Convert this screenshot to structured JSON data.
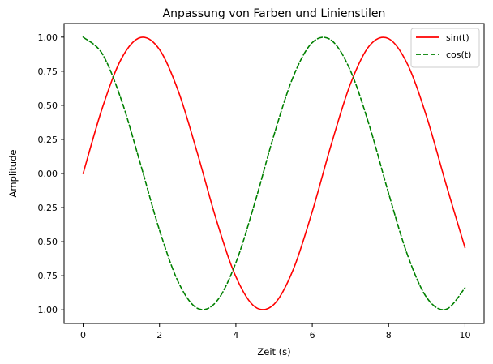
{
  "chart_data": {
    "type": "line",
    "title": "Anpassung von Farben und Linienstilen",
    "xlabel": "Zeit (s)",
    "ylabel": "Amplitude",
    "xlim": [
      -0.5,
      10.5
    ],
    "ylim": [
      -1.1,
      1.1
    ],
    "x_ticks": [
      0,
      2,
      4,
      6,
      8,
      10
    ],
    "x_tick_labels": [
      "0",
      "2",
      "4",
      "6",
      "8",
      "10"
    ],
    "y_ticks": [
      -1.0,
      -0.75,
      -0.5,
      -0.25,
      0.0,
      0.25,
      0.5,
      0.75,
      1.0
    ],
    "y_tick_labels": [
      "−1.00",
      "−0.75",
      "−0.50",
      "−0.25",
      "0.00",
      "0.25",
      "0.50",
      "0.75",
      "1.00"
    ],
    "grid": false,
    "legend_position": "top-right",
    "series": [
      {
        "name": "sin(t)",
        "color": "#ff0000",
        "line_style": "solid",
        "x": [
          0,
          0.5,
          1,
          1.5,
          2,
          2.5,
          3,
          3.5,
          4,
          4.5,
          5,
          5.5,
          6,
          6.5,
          7,
          7.5,
          8,
          8.5,
          9,
          9.5,
          10
        ],
        "y": [
          0.0,
          0.479,
          0.841,
          0.997,
          0.909,
          0.598,
          0.141,
          -0.351,
          -0.757,
          -0.978,
          -0.959,
          -0.706,
          -0.279,
          0.215,
          0.657,
          0.938,
          0.989,
          0.798,
          0.412,
          -0.075,
          -0.544
        ]
      },
      {
        "name": "cos(t)",
        "color": "#008000",
        "line_style": "dashed",
        "x": [
          0,
          0.5,
          1,
          1.5,
          2,
          2.5,
          3,
          3.5,
          4,
          4.5,
          5,
          5.5,
          6,
          6.5,
          7,
          7.5,
          8,
          8.5,
          9,
          9.5,
          10
        ],
        "y": [
          1.0,
          0.878,
          0.54,
          0.071,
          -0.416,
          -0.801,
          -0.99,
          -0.936,
          -0.654,
          -0.211,
          0.284,
          0.709,
          0.96,
          0.977,
          0.754,
          0.347,
          -0.146,
          -0.602,
          -0.911,
          -0.997,
          -0.839
        ]
      }
    ]
  }
}
